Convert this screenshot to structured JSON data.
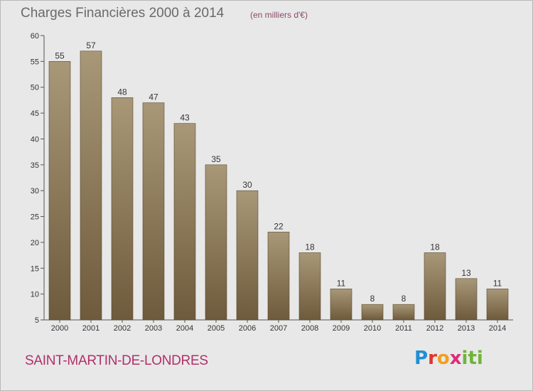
{
  "header": {
    "title": "Charges Financières 2000 à 2014",
    "unit": "(en milliers d'€)"
  },
  "footer": {
    "commune": "SAINT-MARTIN-DE-LONDRES",
    "logo": "Proxiti"
  },
  "colors": {
    "background": "#e8e8e8",
    "bar_light": "#a89878",
    "bar_dark": "#6e5a3c",
    "axis": "#555555",
    "title": "#6a6a6a",
    "commune": "#b0306a"
  },
  "chart_data": {
    "type": "bar",
    "title": "Charges Financières 2000 à 2014",
    "subtitle": "(en milliers d'€)",
    "xlabel": "",
    "ylabel": "",
    "categories": [
      "2000",
      "2001",
      "2002",
      "2003",
      "2004",
      "2005",
      "2006",
      "2007",
      "2008",
      "2009",
      "2010",
      "2011",
      "2012",
      "2013",
      "2014"
    ],
    "values": [
      55,
      57,
      48,
      47,
      43,
      35,
      30,
      22,
      18,
      11,
      8,
      8,
      18,
      13,
      11
    ],
    "ylim": [
      5,
      60
    ],
    "yticks": [
      5,
      10,
      15,
      20,
      25,
      30,
      35,
      40,
      45,
      50,
      55,
      60
    ],
    "grid": false,
    "legend": "none"
  }
}
